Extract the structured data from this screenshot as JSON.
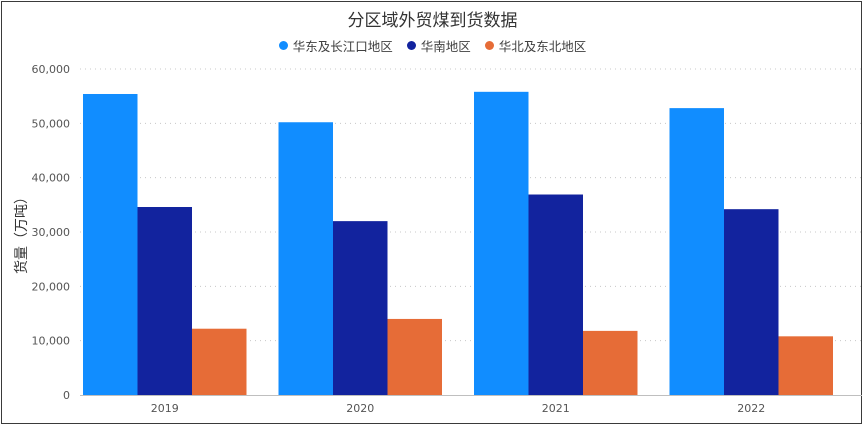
{
  "chart_data": {
    "type": "bar",
    "title": "分区域外贸煤到货数据",
    "xlabel": "",
    "ylabel": "货量（万吨）",
    "categories": [
      "2019",
      "2020",
      "2021",
      "2022"
    ],
    "series": [
      {
        "name": "华东及长江口地区",
        "color": "#118DFF",
        "values": [
          55400,
          50200,
          55800,
          52800
        ]
      },
      {
        "name": "华南地区",
        "color": "#12239E",
        "values": [
          34600,
          32000,
          36900,
          34200
        ]
      },
      {
        "name": "华北及东北地区",
        "color": "#E66C37",
        "values": [
          12200,
          14000,
          11800,
          10800
        ]
      }
    ],
    "ylim": [
      0,
      60000
    ],
    "yticks": [
      "0",
      "10,000",
      "20,000",
      "30,000",
      "40,000",
      "50,000",
      "60,000"
    ],
    "ytick_values": [
      0,
      10000,
      20000,
      30000,
      40000,
      50000,
      60000
    ],
    "grid": true,
    "legend_position": "top-center"
  }
}
